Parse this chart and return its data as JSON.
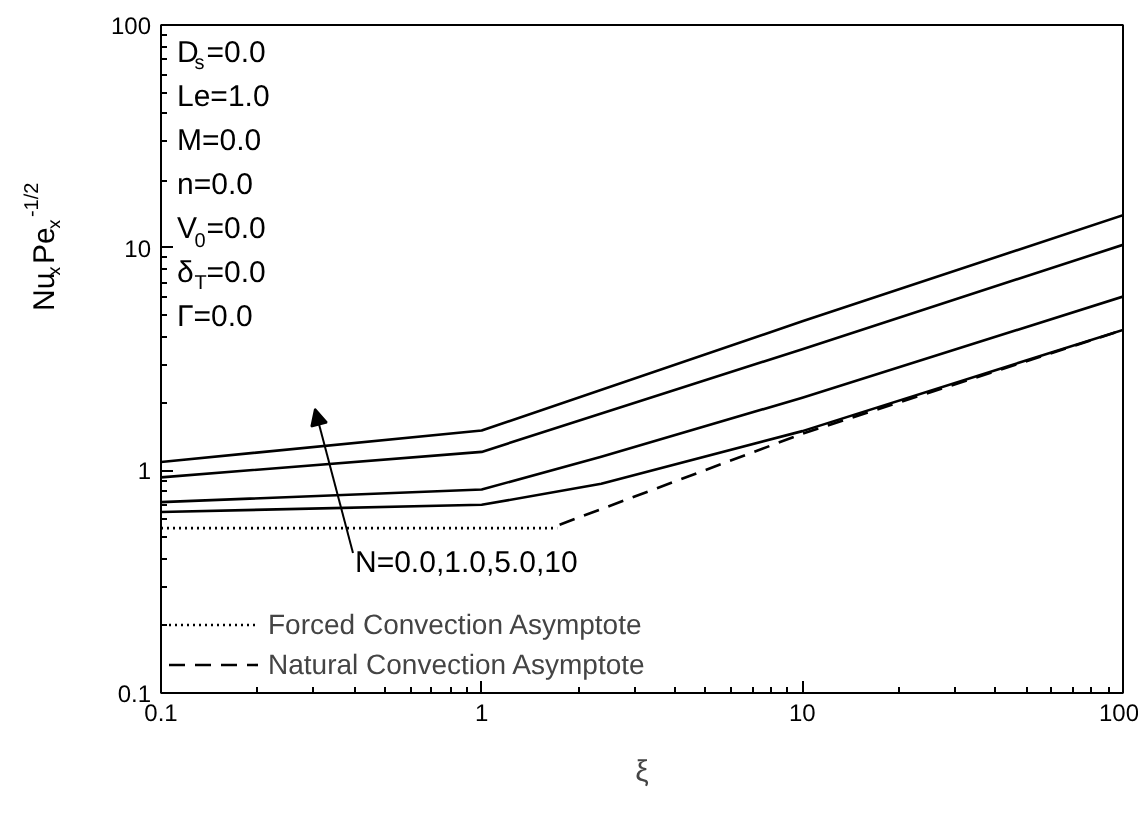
{
  "chart_data": {
    "type": "line",
    "xlabel": "ξ",
    "ylabel": "Nu$_{x}$Pe$_{x}$$^{-1/2}$",
    "log": "xy",
    "xlim": [
      0.1,
      100
    ],
    "ylim": [
      0.1,
      100
    ],
    "xticks": [
      0.1,
      1,
      10,
      100
    ],
    "yticks": [
      0.1,
      1,
      10,
      100
    ],
    "grid": false,
    "legend": "bottom left",
    "series": [
      {
        "color": "#000000",
        "line_style": "solid",
        "x": [
          0.1,
          1,
          10,
          100
        ],
        "values": [
          1.09,
          1.51,
          4.67,
          14.0
        ]
      },
      {
        "color": "#000000",
        "line_style": "solid",
        "x": [
          0.1,
          1,
          10,
          100
        ],
        "values": [
          0.93,
          1.21,
          3.5,
          10.3
        ]
      },
      {
        "color": "#000000",
        "line_style": "solid",
        "x": [
          0.1,
          1,
          2.36,
          10,
          100
        ],
        "values": [
          0.72,
          0.82,
          1.15,
          2.12,
          6.03
        ]
      },
      {
        "color": "#000000",
        "line_style": "solid",
        "x": [
          0.1,
          1,
          2.36,
          10,
          100
        ],
        "values": [
          0.65,
          0.7,
          0.87,
          1.5,
          4.27
        ]
      },
      {
        "name": "Forced Convection Asymptote",
        "color": "#000000",
        "line_style": "dotted",
        "x": [
          0.1,
          1.72
        ],
        "values": [
          0.55,
          0.55
        ]
      },
      {
        "name": "Natural Convection Asymptote",
        "color": "#000000",
        "line_style": "dashed",
        "x": [
          1.75,
          10,
          100
        ],
        "values": [
          0.57,
          1.46,
          4.27
        ]
      }
    ],
    "annotations": [
      "D$_{s}$=0.0",
      "Le=1.0",
      "M=0.0",
      "n=0.0",
      "V$_{0}$=0.0",
      "δ$_{T}$=0.0",
      "Γ=0.0",
      "N=0.0,1.0,5.0,10"
    ]
  }
}
